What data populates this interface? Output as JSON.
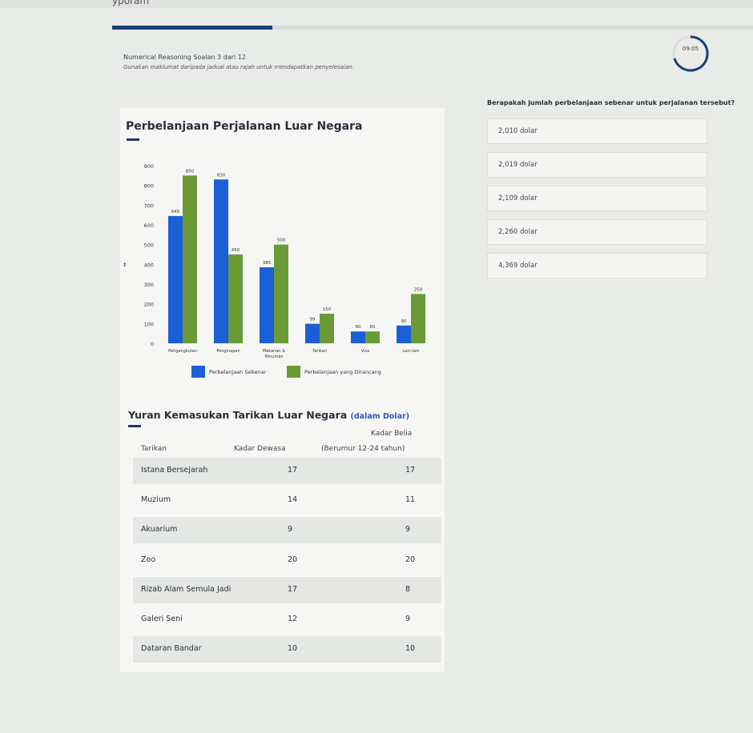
{
  "header": {
    "top_fragment": "yporam",
    "title": "Numerical Reasoning Soalan 3 dari 12",
    "instruction": "Gunakan maklumat daripada jadual atau rajah untuk mendapatkan penyelesaian.",
    "timer": "09:05",
    "progress": 0.25
  },
  "chart_data": {
    "type": "bar",
    "title": "Perbelanjaan Perjalanan Luar Negara",
    "categories": [
      "Pengangkutan",
      "Penginapan",
      "Makanan & Minuman",
      "Tarikan",
      "Visa",
      "Lain-lain"
    ],
    "series": [
      {
        "name": "Perbelanjaan Sebenar",
        "values": [
          645,
          830,
          385,
          99,
          60,
          90
        ],
        "color": "#1a5fd6"
      },
      {
        "name": "Perbelanjaan yang Dirancang",
        "values": [
          850,
          450,
          500,
          150,
          60,
          250
        ],
        "color": "#6a9a36"
      }
    ],
    "ylim": [
      0,
      900
    ],
    "yticks": [
      0,
      100,
      200,
      300,
      400,
      500,
      600,
      700,
      800,
      900
    ],
    "legend": "bottom",
    "grid": false
  },
  "table": {
    "title": "Yuran Kemasukan Tarikan Luar Negara",
    "subtitle": "(dalam Dolar)",
    "headers": {
      "col1": "Tarikan",
      "col2": "Kadar Dewasa",
      "col3_line1": "Kadar Belia",
      "col3_line2": "(Berumur 12-24 tahun)"
    },
    "rows": [
      {
        "name": "Istana Bersejarah",
        "adult": "17",
        "youth": "17"
      },
      {
        "name": "Muzium",
        "adult": "14",
        "youth": "11"
      },
      {
        "name": "Akuarium",
        "adult": "9",
        "youth": "9"
      },
      {
        "name": "Zoo",
        "adult": "20",
        "youth": "20"
      },
      {
        "name": "Rizab Alam Semula Jadi",
        "adult": "17",
        "youth": "8"
      },
      {
        "name": "Galeri Seni",
        "adult": "12",
        "youth": "9"
      },
      {
        "name": "Dataran Bandar",
        "adult": "10",
        "youth": "10"
      }
    ]
  },
  "question": {
    "text": "Berapakah jumlah perbelanjaan sebenar untuk perjalanan tersebut?",
    "options": [
      "2,010 dolar",
      "2,019 dolar",
      "2,109 dolar",
      "2,260 dolar",
      "4,369 dolar"
    ]
  }
}
